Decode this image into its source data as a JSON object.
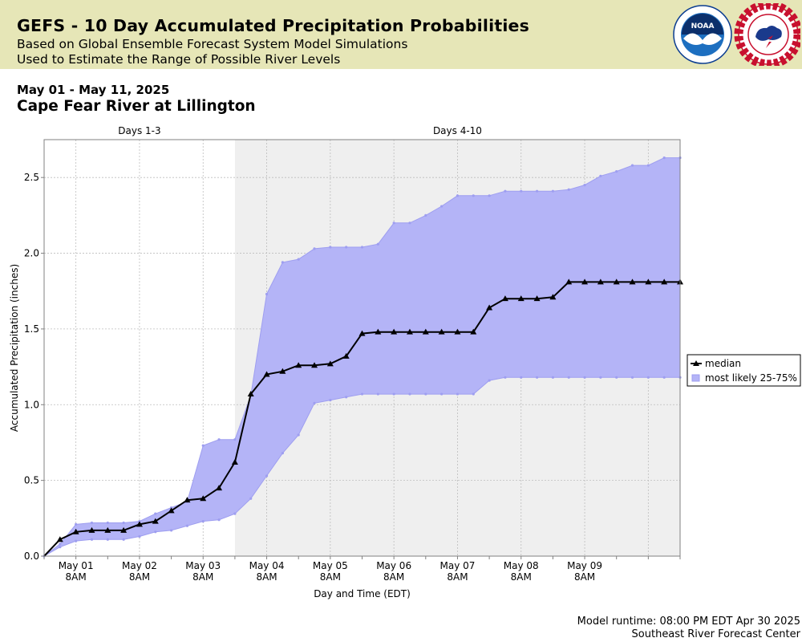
{
  "header": {
    "title": "GEFS - 10 Day Accumulated Precipitation Probabilities",
    "subtitle_line1": "Based on Global Ensemble Forecast System Model Simulations",
    "subtitle_line2": "Used to Estimate the Range of Possible River Levels",
    "logos": [
      {
        "name": "noaa-logo",
        "text": "NOAA"
      },
      {
        "name": "nws-logo",
        "text": "NATIONAL WEATHER SERVICE"
      }
    ]
  },
  "date_range": "May 01 - May 11, 2025",
  "location": "Cape Fear River at Lillington",
  "footer": {
    "runtime": "Model runtime: 08:00 PM EDT Apr 30 2025",
    "center": "Southeast River Forecast Center"
  },
  "chart_data": {
    "type": "area",
    "xlabel": "Day and Time (EDT)",
    "ylabel": "Accumulated Precipitation (inches)",
    "ylim": [
      0,
      2.75
    ],
    "xlim_hours_since_apr30_8pm": [
      0,
      240
    ],
    "y_ticks": [
      "0.0",
      "0.5",
      "1.0",
      "1.5",
      "2.0",
      "2.5"
    ],
    "x_ticks": [
      {
        "hour": 12,
        "day": "May 01",
        "time": "8AM"
      },
      {
        "hour": 36,
        "day": "May 02",
        "time": "8AM"
      },
      {
        "hour": 60,
        "day": "May 03",
        "time": "8AM"
      },
      {
        "hour": 84,
        "day": "May 04",
        "time": "8AM"
      },
      {
        "hour": 108,
        "day": "May 05",
        "time": "8AM"
      },
      {
        "hour": 132,
        "day": "May 06",
        "time": "8AM"
      },
      {
        "hour": 156,
        "day": "May 07",
        "time": "8AM"
      },
      {
        "hour": 180,
        "day": "May 08",
        "time": "8AM"
      },
      {
        "hour": 204,
        "day": "May 09",
        "time": "8AM"
      }
    ],
    "regions": [
      {
        "label": "Days 1-3",
        "start_hour": 0,
        "end_hour": 72,
        "shaded": false
      },
      {
        "label": "Days 4-10",
        "start_hour": 72,
        "end_hour": 240,
        "shaded": true
      }
    ],
    "grid": true,
    "legend_position": "right",
    "colors": {
      "median": "#000000",
      "band_fill": "#b4b4f7",
      "band_edge": "#9e9ef0",
      "shade": "#efefef"
    },
    "x_hours": [
      0,
      6,
      12,
      18,
      24,
      30,
      36,
      42,
      48,
      54,
      60,
      66,
      72,
      78,
      84,
      90,
      96,
      102,
      108,
      114,
      120,
      126,
      132,
      138,
      144,
      150,
      156,
      162,
      168,
      174,
      180,
      186,
      192,
      198,
      204,
      210,
      216,
      222,
      228,
      234,
      240
    ],
    "series": [
      {
        "name": "median",
        "style": "line-triangle",
        "values": [
          0.0,
          0.11,
          0.16,
          0.17,
          0.17,
          0.17,
          0.21,
          0.23,
          0.3,
          0.37,
          0.38,
          0.45,
          0.62,
          1.07,
          1.2,
          1.22,
          1.26,
          1.26,
          1.27,
          1.32,
          1.47,
          1.48,
          1.48,
          1.48,
          1.48,
          1.48,
          1.48,
          1.48,
          1.64,
          1.7,
          1.7,
          1.7,
          1.71,
          1.81,
          1.81,
          1.81,
          1.81,
          1.81,
          1.81,
          1.81,
          1.81
        ]
      },
      {
        "name": "most likely 25-75%",
        "style": "band",
        "lower": [
          0.0,
          0.06,
          0.1,
          0.11,
          0.11,
          0.11,
          0.13,
          0.16,
          0.17,
          0.2,
          0.23,
          0.24,
          0.28,
          0.38,
          0.53,
          0.68,
          0.8,
          1.01,
          1.03,
          1.05,
          1.07,
          1.07,
          1.07,
          1.07,
          1.07,
          1.07,
          1.07,
          1.07,
          1.16,
          1.18,
          1.18,
          1.18,
          1.18,
          1.18,
          1.18,
          1.18,
          1.18,
          1.18,
          1.18,
          1.18,
          1.18
        ],
        "upper": [
          0.0,
          0.08,
          0.21,
          0.22,
          0.22,
          0.22,
          0.23,
          0.28,
          0.32,
          0.36,
          0.73,
          0.77,
          0.77,
          1.06,
          1.73,
          1.94,
          1.96,
          2.03,
          2.04,
          2.04,
          2.04,
          2.06,
          2.2,
          2.2,
          2.25,
          2.31,
          2.38,
          2.38,
          2.38,
          2.41,
          2.41,
          2.41,
          2.41,
          2.42,
          2.45,
          2.51,
          2.54,
          2.58,
          2.58,
          2.63,
          2.63
        ]
      }
    ]
  }
}
